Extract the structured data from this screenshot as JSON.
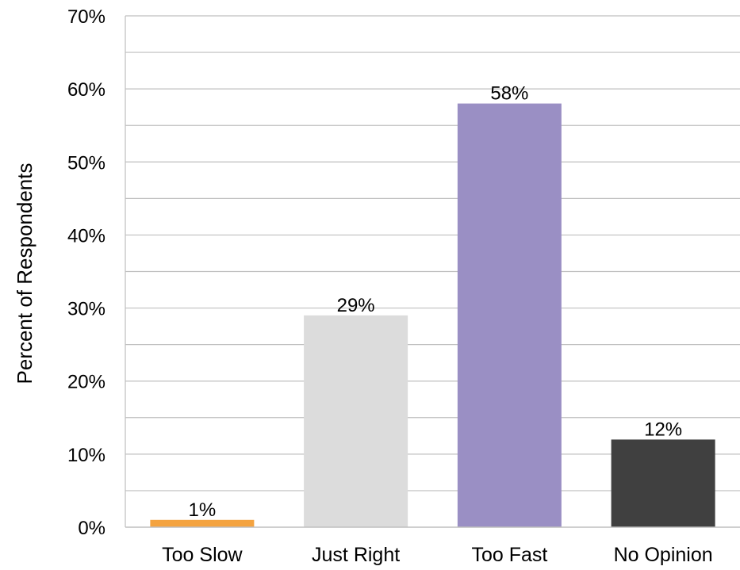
{
  "chart_data": {
    "type": "bar",
    "categories": [
      "Too Slow",
      "Just Right",
      "Too Fast",
      "No Opinion"
    ],
    "values": [
      1,
      29,
      58,
      12
    ],
    "data_labels": [
      "1%",
      "29%",
      "58%",
      "12%"
    ],
    "colors": [
      "#F4A340",
      "#DCDCDC",
      "#9A8FC4",
      "#404040"
    ],
    "title": "",
    "xlabel": "",
    "ylabel": "Percent of Respondents",
    "ylim": [
      0,
      70
    ],
    "yticks": [
      0,
      10,
      20,
      30,
      40,
      50,
      60,
      70
    ],
    "ytick_labels": [
      "0%",
      "10%",
      "20%",
      "30%",
      "40%",
      "50%",
      "60%",
      "70%"
    ],
    "minor_ticks": [
      5,
      15,
      25,
      35,
      45,
      55,
      65
    ],
    "grid": true,
    "grid_color": "#BFBFBF",
    "legend": "none"
  }
}
